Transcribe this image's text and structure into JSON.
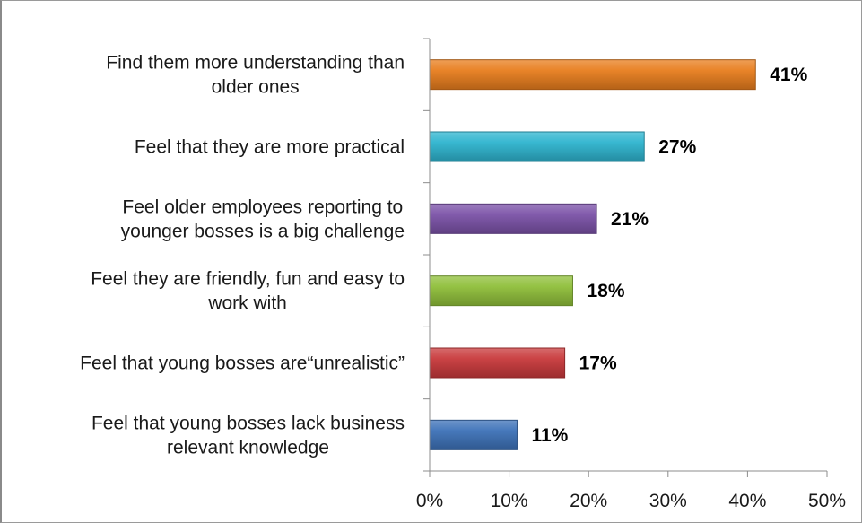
{
  "chart_data": {
    "type": "bar",
    "orientation": "horizontal",
    "categories": [
      [
        "Find them more understanding than",
        "older ones"
      ],
      [
        "Feel that they are more practical"
      ],
      [
        "Feel older employees reporting to",
        "younger bosses is a big challenge"
      ],
      [
        "Feel they are friendly, fun and easy to",
        "work with"
      ],
      [
        "Feel that young bosses are“unrealistic”"
      ],
      [
        "Feel that young bosses lack business",
        "relevant knowledge"
      ]
    ],
    "values": [
      41,
      27,
      21,
      18,
      17,
      11
    ],
    "value_labels": [
      "41%",
      "27%",
      "21%",
      "18%",
      "17%",
      "11%"
    ],
    "bar_colors": [
      "#e87d1e",
      "#2eb4cf",
      "#7b52a8",
      "#8fbf3a",
      "#c8393b",
      "#3d72b8"
    ],
    "xlim": [
      0,
      50
    ],
    "xticks": [
      0,
      10,
      20,
      30,
      40,
      50
    ],
    "xtick_labels": [
      "0%",
      "10%",
      "20%",
      "30%",
      "40%",
      "50%"
    ],
    "grid": false,
    "legend": "none",
    "title": "",
    "xlabel": "",
    "ylabel": ""
  }
}
